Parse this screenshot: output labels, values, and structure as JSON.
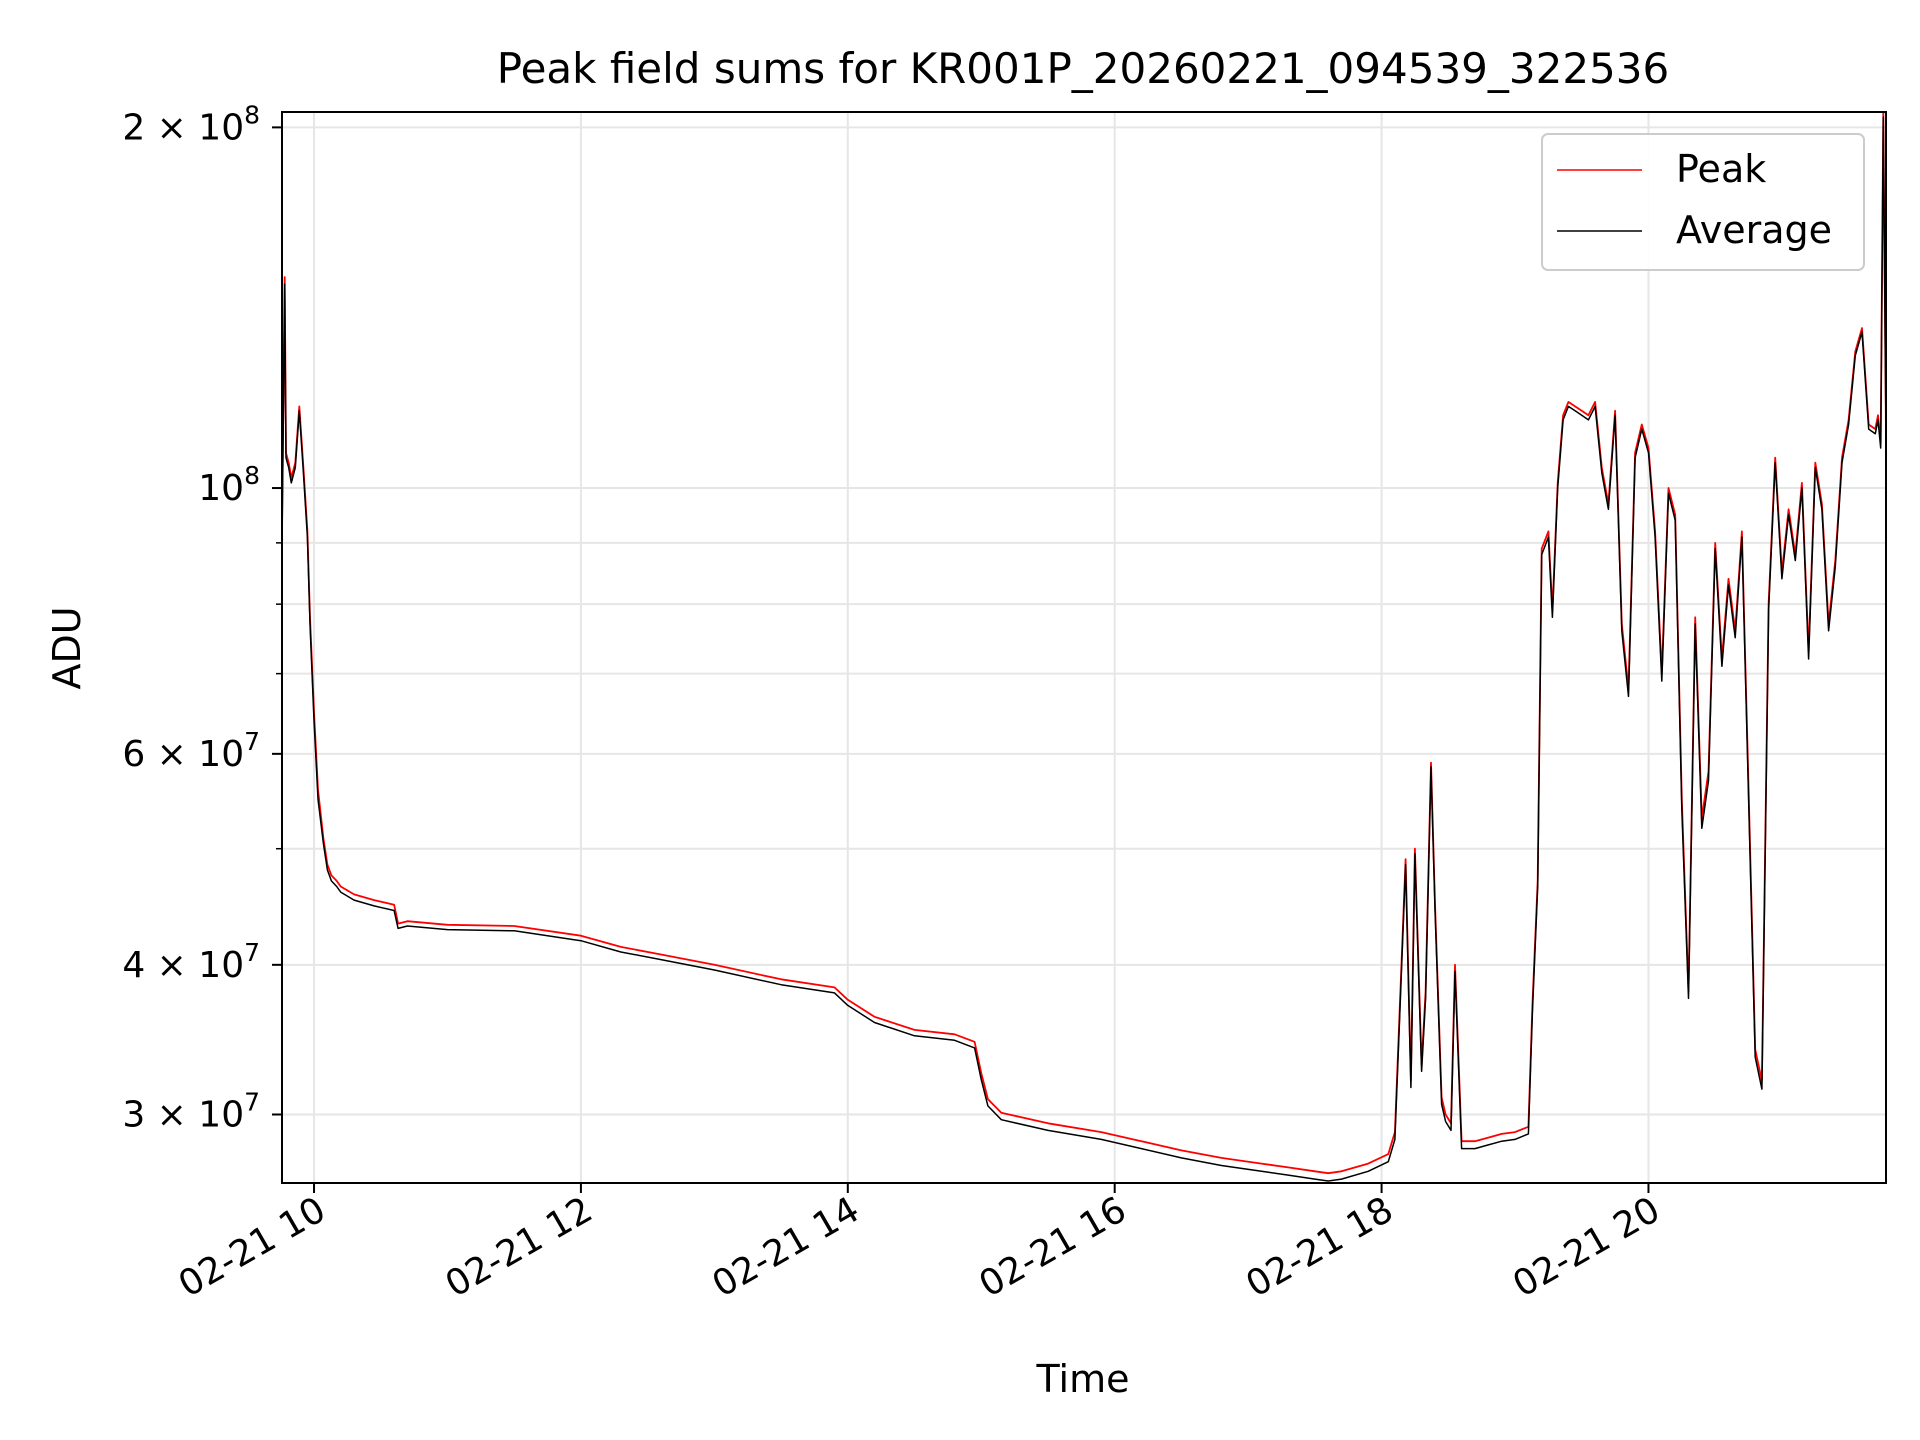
{
  "chart_data": {
    "type": "line",
    "title": "Peak field sums for KR001P_20260221_094539_322536",
    "xlabel": "Time",
    "ylabel": "ADU",
    "y_scale": "log",
    "xlim_hours": [
      9.76,
      21.78
    ],
    "ylim": [
      26300000,
      206000000
    ],
    "grid": true,
    "legend_location": "upper right",
    "x_tick_values_hours": [
      10,
      12,
      14,
      16,
      18,
      20
    ],
    "x_tick_labels": [
      "02-21 10",
      "02-21 12",
      "02-21 14",
      "02-21 16",
      "02-21 18",
      "02-21 20"
    ],
    "y_major_ticks": [
      {
        "value": 30000000,
        "mantissa": "3",
        "exponent": "7"
      },
      {
        "value": 40000000,
        "mantissa": "4",
        "exponent": "7"
      },
      {
        "value": 60000000,
        "mantissa": "6",
        "exponent": "7"
      },
      {
        "value": 100000000,
        "mantissa": "",
        "exponent": "8"
      },
      {
        "value": 200000000,
        "mantissa": "2",
        "exponent": "8"
      }
    ],
    "y_minor_ticks": [
      50000000,
      70000000,
      80000000,
      90000000
    ],
    "series": [
      {
        "name": "Peak",
        "color": "#ff0000"
      },
      {
        "name": "Average",
        "color": "#000000"
      }
    ],
    "points": {
      "time_hours": [
        9.76,
        9.78,
        9.79,
        9.8,
        9.81,
        9.83,
        9.86,
        9.89,
        9.92,
        9.95,
        9.97,
        10.0,
        10.03,
        10.07,
        10.1,
        10.13,
        10.17,
        10.2,
        10.3,
        10.45,
        10.6,
        10.63,
        10.7,
        11.0,
        11.5,
        12.0,
        12.3,
        12.6,
        13.0,
        13.5,
        13.9,
        14.0,
        14.2,
        14.5,
        14.8,
        14.95,
        15.0,
        15.05,
        15.15,
        15.5,
        15.9,
        16.2,
        16.5,
        16.8,
        17.1,
        17.3,
        17.5,
        17.6,
        17.7,
        17.9,
        18.05,
        18.1,
        18.18,
        18.22,
        18.25,
        18.3,
        18.33,
        18.37,
        18.4,
        18.45,
        18.48,
        18.52,
        18.55,
        18.6,
        18.7,
        18.8,
        18.9,
        19.0,
        19.1,
        19.13,
        19.17,
        19.2,
        19.25,
        19.28,
        19.32,
        19.36,
        19.4,
        19.45,
        19.5,
        19.55,
        19.6,
        19.65,
        19.7,
        19.75,
        19.8,
        19.85,
        19.9,
        19.95,
        20.0,
        20.05,
        20.1,
        20.15,
        20.2,
        20.25,
        20.3,
        20.35,
        20.4,
        20.45,
        20.5,
        20.55,
        20.6,
        20.65,
        20.7,
        20.75,
        20.8,
        20.85,
        20.9,
        20.95,
        21.0,
        21.05,
        21.1,
        21.15,
        21.2,
        21.25,
        21.3,
        21.35,
        21.4,
        21.45,
        21.5,
        21.55,
        21.6,
        21.65,
        21.7,
        21.72,
        21.74,
        21.76,
        21.78
      ],
      "peak": [
        93000000,
        150000000,
        107000000,
        106000000,
        105000000,
        102000000,
        105000000,
        117000000,
        104000000,
        92000000,
        78000000,
        65000000,
        56000000,
        51000000,
        48500000,
        47500000,
        47000000,
        46500000,
        45800000,
        45300000,
        44900000,
        43300000,
        43500000,
        43200000,
        43100000,
        42300000,
        41400000,
        40800000,
        40000000,
        38900000,
        38300000,
        37400000,
        36200000,
        35300000,
        35000000,
        34500000,
        32500000,
        30900000,
        30100000,
        29500000,
        29000000,
        28500000,
        28000000,
        27600000,
        27300000,
        27100000,
        26900000,
        26800000,
        26900000,
        27300000,
        27800000,
        29000000,
        49000000,
        32000000,
        50000000,
        33000000,
        38000000,
        59000000,
        45000000,
        31000000,
        30000000,
        29500000,
        40000000,
        28500000,
        28500000,
        28700000,
        28900000,
        29000000,
        29300000,
        37000000,
        47000000,
        89000000,
        92000000,
        79000000,
        101000000,
        115000000,
        118000000,
        117000000,
        116000000,
        115000000,
        118000000,
        104000000,
        97000000,
        116000000,
        77000000,
        68000000,
        107000000,
        113000000,
        108000000,
        92000000,
        70000000,
        100000000,
        95000000,
        55000000,
        38000000,
        78000000,
        53000000,
        58000000,
        90000000,
        72000000,
        84000000,
        76000000,
        92000000,
        56000000,
        34000000,
        32000000,
        80000000,
        106000000,
        85000000,
        96000000,
        88000000,
        101000000,
        73000000,
        105000000,
        97000000,
        77000000,
        87000000,
        106000000,
        114000000,
        130000000,
        136000000,
        113000000,
        112000000,
        115000000,
        109000000,
        206000000,
        111000000
      ],
      "average": [
        89000000,
        148000000,
        106000000,
        105000000,
        104000000,
        101000000,
        104000000,
        116000000,
        103000000,
        91000000,
        77000000,
        64000000,
        55000000,
        50500000,
        48000000,
        47000000,
        46500000,
        46000000,
        45300000,
        44800000,
        44400000,
        42900000,
        43100000,
        42800000,
        42700000,
        41900000,
        41000000,
        40400000,
        39600000,
        38500000,
        37900000,
        37000000,
        35800000,
        34900000,
        34600000,
        34100000,
        32100000,
        30500000,
        29700000,
        29100000,
        28600000,
        28100000,
        27600000,
        27200000,
        26900000,
        26700000,
        26500000,
        26400000,
        26500000,
        26900000,
        27400000,
        28600000,
        48500000,
        31600000,
        49500000,
        32600000,
        37500000,
        58500000,
        44500000,
        30600000,
        29600000,
        29100000,
        39500000,
        28100000,
        28100000,
        28300000,
        28500000,
        28600000,
        28900000,
        36500000,
        46500000,
        88000000,
        91000000,
        78000000,
        100000000,
        114000000,
        117000000,
        116000000,
        115000000,
        114000000,
        117000000,
        103000000,
        96000000,
        115000000,
        76000000,
        67000000,
        106000000,
        112000000,
        107000000,
        91000000,
        69000000,
        99000000,
        94000000,
        54000000,
        37500000,
        77000000,
        52000000,
        57000000,
        89000000,
        71000000,
        83000000,
        75000000,
        91000000,
        55000000,
        33500000,
        31500000,
        79000000,
        105000000,
        84000000,
        95000000,
        87000000,
        100000000,
        72000000,
        104000000,
        96000000,
        76000000,
        86000000,
        105000000,
        113000000,
        129000000,
        135000000,
        112000000,
        111000000,
        114000000,
        108000000,
        204000000,
        110000000
      ]
    }
  }
}
